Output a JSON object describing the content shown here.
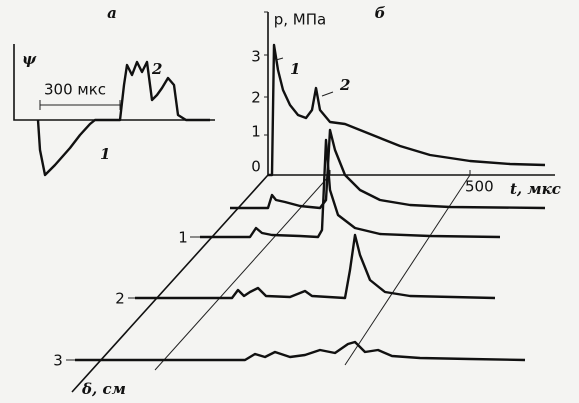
{
  "panel_a": {
    "label": "a",
    "axis_label": "ψ",
    "scale_label": "300 мкс",
    "curve_labels": [
      "1",
      "2"
    ]
  },
  "panel_b": {
    "label": "б",
    "y_axis_label": "p, МПа",
    "y_tick_labels": [
      "3",
      "2",
      "1",
      "0"
    ],
    "curve_labels": [
      "1",
      "2"
    ],
    "x_tick_label": "500",
    "x_axis_label": "t, мкс",
    "depth_tick_labels": [
      "1",
      "2",
      "3"
    ],
    "depth_axis_label": "δ, см"
  }
}
